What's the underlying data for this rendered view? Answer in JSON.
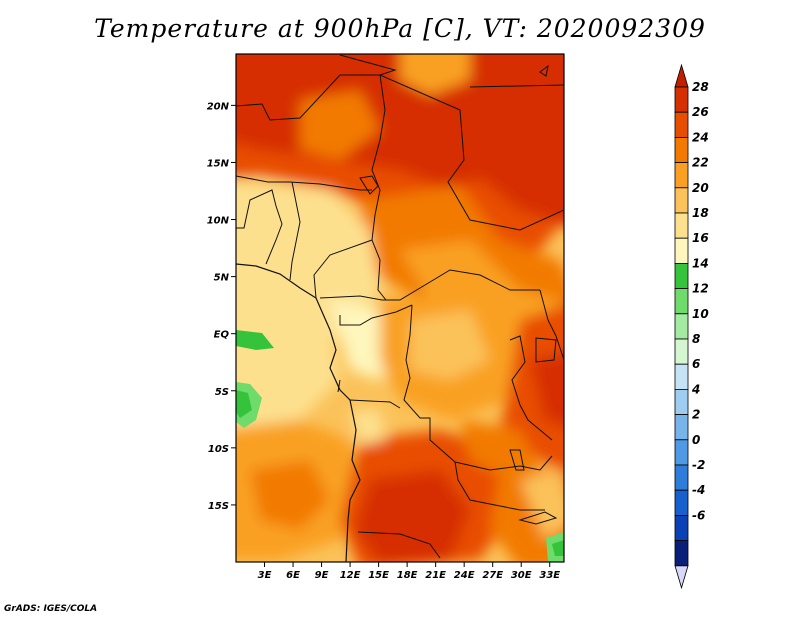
{
  "title": "Temperature at 900hPa [C], VT: 2020092309",
  "credit": "GrADS: IGES/COLA",
  "map": {
    "lon_range": [
      0,
      34.5
    ],
    "lat_range": [
      -20,
      24.5
    ],
    "x_ticks": [
      "3E",
      "6E",
      "9E",
      "12E",
      "15E",
      "18E",
      "21E",
      "24E",
      "27E",
      "30E",
      "33E"
    ],
    "x_tick_values": [
      3,
      6,
      9,
      12,
      15,
      18,
      21,
      24,
      27,
      30,
      33
    ],
    "y_ticks": [
      "20N",
      "15N",
      "10N",
      "5N",
      "EQ",
      "5S",
      "10S",
      "15S"
    ],
    "y_tick_values": [
      20,
      15,
      10,
      5,
      0,
      -5,
      -10,
      -15
    ]
  },
  "colorbar": {
    "labels": [
      "28",
      "26",
      "24",
      "22",
      "20",
      "18",
      "16",
      "14",
      "12",
      "10",
      "8",
      "6",
      "4",
      "2",
      "0",
      "-2",
      "-4",
      "-6"
    ],
    "colors": [
      "#d62f00",
      "#e84e00",
      "#f27a00",
      "#f9a024",
      "#fbc25a",
      "#fde08e",
      "#fef6bc",
      "#36c33c",
      "#6fdb6a",
      "#a4eba2",
      "#d4f7d1",
      "#c6e3f6",
      "#9fcdf1",
      "#77b4ea",
      "#4f9ae4",
      "#2e7ddb",
      "#1860cd",
      "#0a42b6",
      "#0a1f78"
    ],
    "top_arrow_color": "#c21e00",
    "bottom_arrow_color": "#d8d8f8"
  }
}
